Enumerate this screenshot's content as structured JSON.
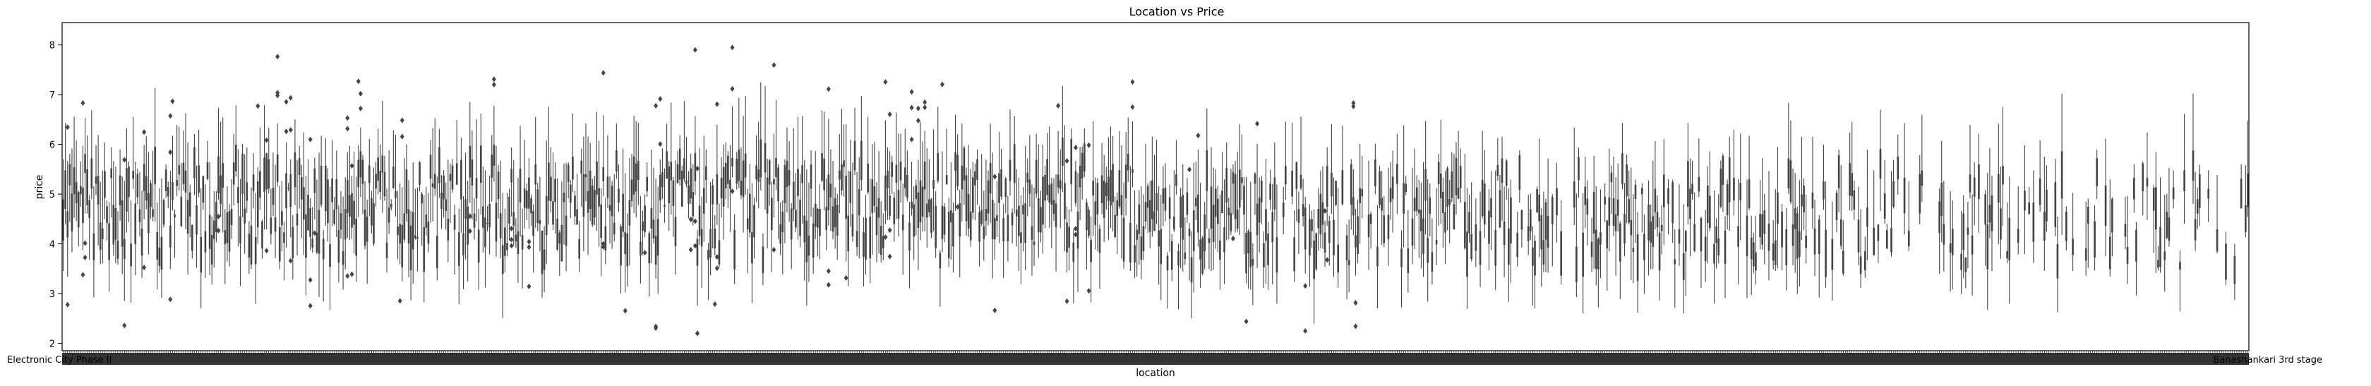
{
  "chart_data": {
    "type": "box",
    "title": "Location vs Price",
    "xlabel": "location",
    "ylabel": "price",
    "ylim": [
      1.85,
      8.45
    ],
    "yticks": [
      2,
      3,
      4,
      5,
      6,
      7,
      8
    ],
    "xtick_labels_visible": [
      "Electronic City Phase II",
      "Banashankari 3rd stage"
    ],
    "category_count": 1000,
    "box_color": "#444444",
    "grid": false,
    "legend": "none"
  }
}
